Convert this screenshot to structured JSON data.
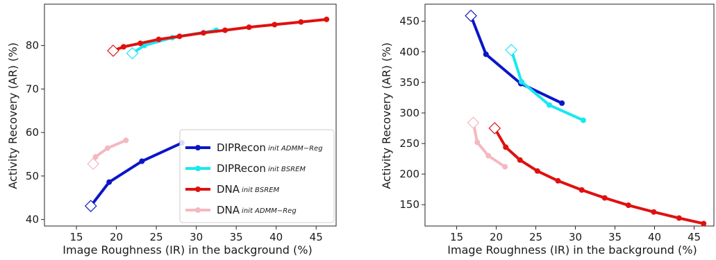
{
  "chart_data": [
    {
      "type": "line",
      "xlabel": "Image Roughness (IR) in the background (%)",
      "ylabel": "Activity Recovery (AR) (%)",
      "xlim": [
        11,
        47.5
      ],
      "ylim": [
        38.5,
        89.5
      ],
      "xticks": [
        15,
        20,
        25,
        30,
        35,
        40,
        45
      ],
      "yticks": [
        40,
        50,
        60,
        70,
        80
      ],
      "grid": false,
      "legend": {
        "placement": "lower-right",
        "entries": [
          {
            "name": "DIPRecon",
            "sub": "init ADMM−Reg",
            "color": "#0a16c8"
          },
          {
            "name": "DIPRecon",
            "sub": "init BSREM",
            "color": "#1ae8f0"
          },
          {
            "name": "DNA",
            "sub": "init BSREM",
            "color": "#e01010"
          },
          {
            "name": "DNA",
            "sub": "init ADMM−Reg",
            "color": "#f4b8c0"
          }
        ]
      },
      "series": [
        {
          "legend": 0,
          "color": "#0a16c8",
          "x": [
            16.8,
            19.1,
            23.2,
            28.2
          ],
          "y": [
            43.1,
            48.6,
            53.4,
            57.6
          ]
        },
        {
          "legend": 1,
          "color": "#1ae8f0",
          "x": [
            22.0,
            23.5,
            27.0,
            32.5
          ],
          "y": [
            78.2,
            80.0,
            81.8,
            83.5
          ]
        },
        {
          "legend": 2,
          "color": "#e01010",
          "x": [
            19.6,
            20.9,
            23.0,
            25.3,
            27.9,
            30.9,
            33.6,
            36.6,
            39.8,
            43.1,
            46.3
          ],
          "y": [
            78.8,
            79.7,
            80.5,
            81.4,
            82.1,
            82.9,
            83.5,
            84.2,
            84.8,
            85.4,
            86.0
          ]
        },
        {
          "legend": 3,
          "color": "#f4b8c0",
          "x": [
            17.1,
            17.4,
            18.9,
            21.2
          ],
          "y": [
            52.8,
            54.4,
            56.4,
            58.2
          ]
        }
      ]
    },
    {
      "type": "line",
      "xlabel": "Image Roughness (IR) in the background (%)",
      "ylabel": "Activity Recovery (AR) (%)",
      "xlim": [
        11,
        47.5
      ],
      "ylim": [
        115,
        478
      ],
      "xticks": [
        15,
        20,
        25,
        30,
        35,
        40,
        45
      ],
      "yticks": [
        150,
        200,
        250,
        300,
        350,
        400,
        450
      ],
      "grid": false,
      "series": [
        {
          "color": "#0a16c8",
          "x": [
            16.8,
            18.7,
            23.1,
            28.3
          ],
          "y": [
            459,
            396,
            348,
            316
          ]
        },
        {
          "color": "#1ae8f0",
          "x": [
            21.9,
            23.2,
            26.7,
            31.0
          ],
          "y": [
            403,
            351,
            313,
            288
          ]
        },
        {
          "color": "#e01010",
          "x": [
            19.8,
            21.2,
            23.0,
            25.2,
            27.8,
            30.8,
            33.7,
            36.7,
            39.9,
            43.1,
            46.2
          ],
          "y": [
            275,
            244,
            223,
            205,
            189,
            174,
            161,
            149,
            138,
            128,
            119
          ]
        },
        {
          "color": "#f4b8c0",
          "x": [
            17.1,
            17.6,
            19.0,
            21.1
          ],
          "y": [
            284,
            252,
            230,
            212
          ]
        }
      ]
    }
  ]
}
